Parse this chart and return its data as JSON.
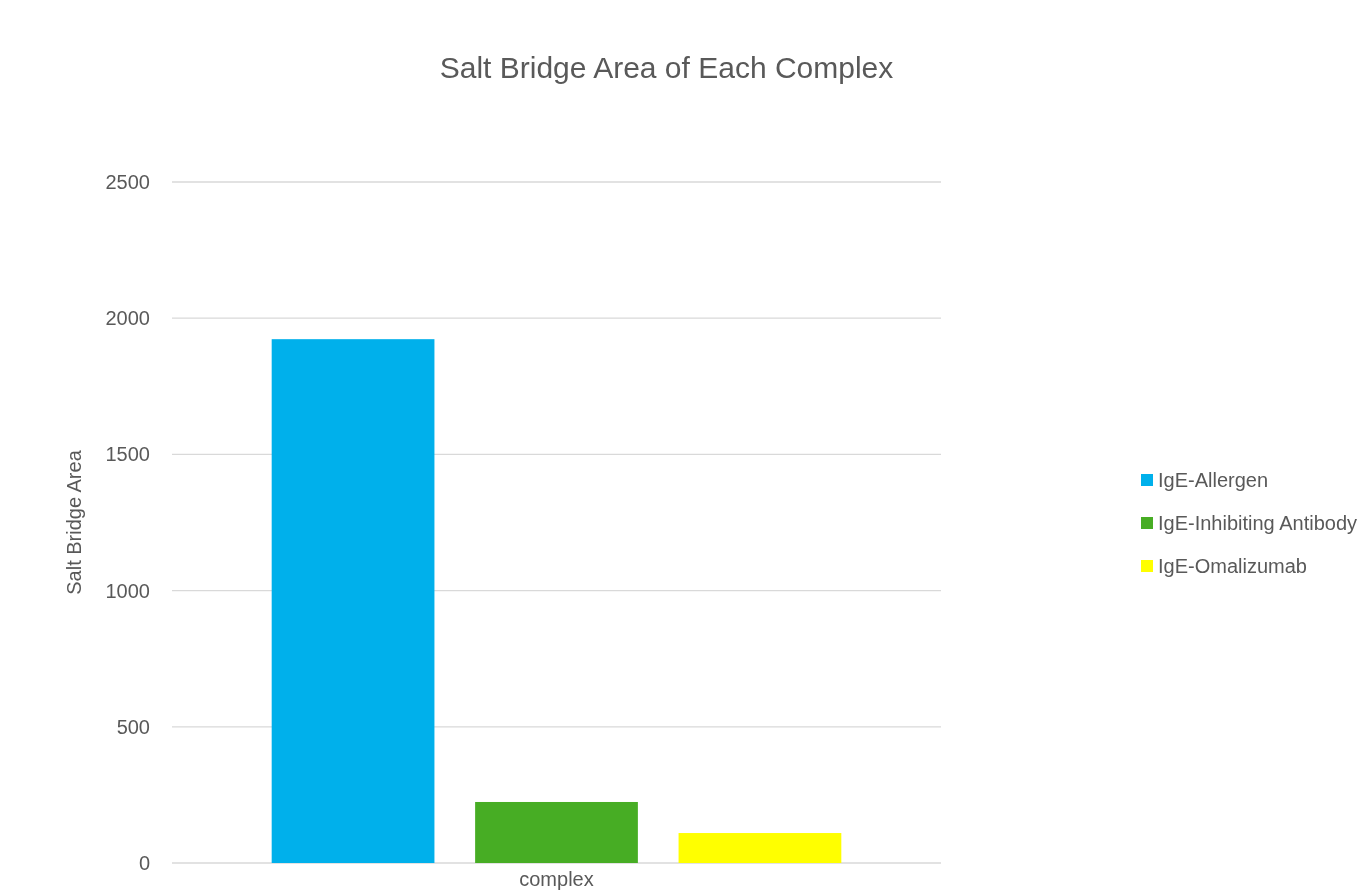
{
  "chart_data": {
    "type": "bar",
    "title": "Salt Bridge Area of Each Complex",
    "ylabel": "Salt Bridge Area",
    "categories": [
      "complex"
    ],
    "series": [
      {
        "name": "IgE-Allergen",
        "color": "#00b0eb",
        "values": [
          1923
        ]
      },
      {
        "name": "IgE-Inhibiting Antibody",
        "color": "#47ad24",
        "values": [
          224
        ]
      },
      {
        "name": "IgE-Omalizumab",
        "color": "#ffff00",
        "values": [
          110
        ]
      }
    ],
    "ylim": [
      0,
      2500
    ],
    "yticks": [
      0,
      500,
      1000,
      1500,
      2000,
      2500
    ],
    "grid": "y",
    "legend": "right"
  }
}
